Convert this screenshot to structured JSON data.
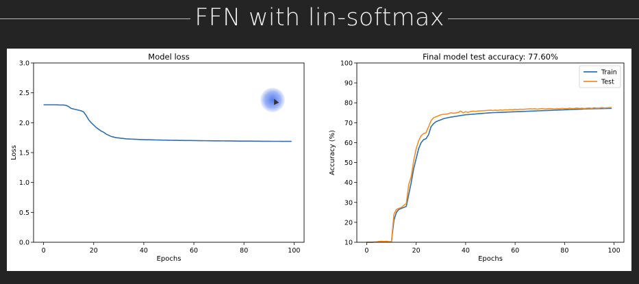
{
  "slide": {
    "title": "FFN with lin-softmax"
  },
  "chart_data": [
    {
      "type": "line",
      "title": "Model loss",
      "xlabel": "Epochs",
      "ylabel": "Loss",
      "xlim": [
        -4,
        104
      ],
      "ylim": [
        0,
        3.0
      ],
      "xticks": [
        0,
        20,
        40,
        60,
        80,
        100
      ],
      "yticks": [
        0.0,
        0.5,
        1.0,
        1.5,
        2.0,
        2.5,
        3.0
      ],
      "ytick_labels": [
        "0.0",
        "0.5",
        "1.0",
        "1.5",
        "2.0",
        "2.5",
        "3.0"
      ],
      "grid": false,
      "color": "#2c6db3",
      "x": [
        0,
        1,
        2,
        3,
        4,
        5,
        6,
        7,
        8,
        9,
        10,
        11,
        12,
        13,
        14,
        15,
        16,
        17,
        18,
        19,
        20,
        21,
        22,
        23,
        24,
        25,
        26,
        27,
        28,
        29,
        30,
        31,
        32,
        33,
        34,
        35,
        36,
        37,
        38,
        39,
        40,
        41,
        42,
        43,
        44,
        45,
        46,
        47,
        48,
        49,
        50,
        51,
        52,
        53,
        54,
        55,
        56,
        57,
        58,
        59,
        60,
        61,
        62,
        63,
        64,
        65,
        66,
        67,
        68,
        69,
        70,
        71,
        72,
        73,
        74,
        75,
        76,
        77,
        78,
        79,
        80,
        81,
        82,
        83,
        84,
        85,
        86,
        87,
        88,
        89,
        90,
        91,
        92,
        93,
        94,
        95,
        96,
        97,
        98,
        99
      ],
      "values": [
        2.3,
        2.3,
        2.3,
        2.3,
        2.3,
        2.3,
        2.298,
        2.297,
        2.296,
        2.29,
        2.27,
        2.24,
        2.23,
        2.22,
        2.21,
        2.2,
        2.18,
        2.12,
        2.05,
        2.0,
        1.96,
        1.92,
        1.89,
        1.86,
        1.84,
        1.81,
        1.79,
        1.77,
        1.76,
        1.75,
        1.745,
        1.74,
        1.735,
        1.73,
        1.728,
        1.726,
        1.724,
        1.722,
        1.72,
        1.718,
        1.717,
        1.716,
        1.715,
        1.714,
        1.713,
        1.712,
        1.711,
        1.71,
        1.709,
        1.708,
        1.707,
        1.706,
        1.705,
        1.705,
        1.704,
        1.704,
        1.703,
        1.703,
        1.702,
        1.702,
        1.701,
        1.701,
        1.7,
        1.7,
        1.699,
        1.699,
        1.698,
        1.698,
        1.697,
        1.697,
        1.697,
        1.696,
        1.696,
        1.695,
        1.695,
        1.695,
        1.694,
        1.694,
        1.693,
        1.693,
        1.693,
        1.692,
        1.692,
        1.692,
        1.691,
        1.691,
        1.691,
        1.69,
        1.69,
        1.69,
        1.69,
        1.689,
        1.689,
        1.689,
        1.689,
        1.688,
        1.688,
        1.688,
        1.688,
        1.688
      ]
    },
    {
      "type": "line",
      "title": "Final model test accuracy: 77.60%",
      "xlabel": "Epochs",
      "ylabel": "Accuracy (%)",
      "xlim": [
        -4,
        104
      ],
      "ylim": [
        10,
        100
      ],
      "xticks": [
        0,
        20,
        40,
        60,
        80,
        100
      ],
      "yticks": [
        10,
        20,
        30,
        40,
        50,
        60,
        70,
        80,
        90,
        100
      ],
      "ytick_labels": [
        "10",
        "20",
        "30",
        "40",
        "50",
        "60",
        "70",
        "80",
        "90",
        "100"
      ],
      "grid": false,
      "legend": "top-right",
      "x": [
        0,
        1,
        2,
        3,
        4,
        5,
        6,
        7,
        8,
        9,
        10,
        11,
        12,
        13,
        14,
        15,
        16,
        17,
        18,
        19,
        20,
        21,
        22,
        23,
        24,
        25,
        26,
        27,
        28,
        29,
        30,
        31,
        32,
        33,
        34,
        35,
        36,
        37,
        38,
        39,
        40,
        41,
        42,
        43,
        44,
        45,
        46,
        47,
        48,
        49,
        50,
        51,
        52,
        53,
        54,
        55,
        56,
        57,
        58,
        59,
        60,
        61,
        62,
        63,
        64,
        65,
        66,
        67,
        68,
        69,
        70,
        71,
        72,
        73,
        74,
        75,
        76,
        77,
        78,
        79,
        80,
        81,
        82,
        83,
        84,
        85,
        86,
        87,
        88,
        89,
        90,
        91,
        92,
        93,
        94,
        95,
        96,
        97,
        98,
        99
      ],
      "series": [
        {
          "name": "Train",
          "color": "#2c6db3",
          "values": [
            10,
            10,
            10,
            10.1,
            10.1,
            10.2,
            10.3,
            10.2,
            10.3,
            10.2,
            10.2,
            21,
            25,
            26.5,
            27,
            27.5,
            28,
            34,
            40,
            47,
            52,
            57,
            60,
            61.5,
            62,
            64,
            68,
            69.5,
            70.5,
            71,
            71.5,
            72,
            72.3,
            72.6,
            72.8,
            73,
            73.2,
            73.4,
            73.6,
            73.8,
            74,
            74.1,
            74.2,
            74.3,
            74.4,
            74.5,
            74.6,
            74.7,
            74.8,
            74.9,
            75,
            75.05,
            75.1,
            75.15,
            75.2,
            75.25,
            75.3,
            75.35,
            75.4,
            75.45,
            75.5,
            75.55,
            75.6,
            75.65,
            75.7,
            75.75,
            75.8,
            75.85,
            75.9,
            75.95,
            76,
            76.05,
            76.1,
            76.15,
            76.2,
            76.25,
            76.3,
            76.35,
            76.4,
            76.45,
            76.5,
            76.55,
            76.6,
            76.65,
            76.7,
            76.75,
            76.8,
            76.85,
            76.9,
            76.95,
            77,
            77,
            77.05,
            77.05,
            77.1,
            77.1,
            77.15,
            77.15,
            77.2,
            77.2
          ]
        },
        {
          "name": "Test",
          "color": "#f28e22",
          "values": [
            10,
            10,
            10,
            10.1,
            10.2,
            10.4,
            10.5,
            10.4,
            10.5,
            10.3,
            10.3,
            24,
            26.5,
            27,
            27.5,
            28.5,
            29.5,
            39,
            43,
            51,
            57,
            61,
            63.5,
            64.5,
            65,
            68,
            71,
            72.5,
            73,
            73.5,
            74,
            74.2,
            74.3,
            74.5,
            75,
            74.8,
            74.9,
            75.2,
            75.8,
            75,
            75.5,
            75.2,
            75.6,
            75.8,
            75.7,
            75.9,
            76,
            76,
            76.1,
            76.2,
            76.3,
            76.1,
            76.3,
            76.2,
            76.4,
            76.3,
            76.5,
            76.4,
            76.6,
            76.5,
            76.7,
            76.6,
            76.8,
            76.7,
            76.8,
            76.9,
            77,
            76.9,
            77,
            76.8,
            77,
            77.1,
            76.9,
            77,
            77.1,
            77,
            76.9,
            77.1,
            77,
            77.2,
            77.1,
            77,
            77.3,
            77.1,
            77.2,
            77.4,
            77.2,
            77.3,
            77.1,
            77.3,
            77.4,
            77.2,
            77.5,
            77.3,
            77.4,
            77.6,
            77.4,
            77.5,
            77.6,
            77.6
          ]
        }
      ]
    }
  ]
}
